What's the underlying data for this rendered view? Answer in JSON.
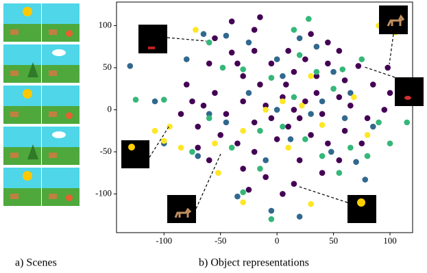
{
  "chart_data": {
    "type": "scatter",
    "xlim": [
      -142,
      120
    ],
    "ylim": [
      -146,
      128
    ],
    "xticks": [
      -100,
      -50,
      0,
      50,
      100
    ],
    "yticks": [
      -100,
      -50,
      0,
      50,
      100
    ],
    "series": [
      {
        "color": "#440154",
        "x": [
          -60,
          -40,
          -35,
          -20,
          -30,
          -15,
          -5,
          10,
          15,
          25,
          35,
          45,
          55,
          60,
          72,
          98,
          -75,
          -65,
          -55,
          -45,
          -30,
          -20,
          -10,
          5,
          15,
          25,
          40,
          55,
          65,
          80,
          95,
          -85,
          -70,
          -50,
          -35,
          -20,
          0,
          10,
          30,
          45,
          60,
          75,
          -60,
          -30,
          -10,
          20,
          40,
          15,
          55,
          -25,
          5,
          -40,
          -15,
          30,
          45,
          -80,
          -70,
          85,
          100,
          -55,
          -20,
          8,
          -5,
          35,
          20
        ],
        "y": [
          55,
          68,
          55,
          70,
          40,
          30,
          55,
          70,
          45,
          60,
          40,
          55,
          70,
          35,
          52,
          50,
          10,
          5,
          20,
          -5,
          10,
          -15,
          5,
          15,
          0,
          10,
          -5,
          15,
          5,
          -10,
          0,
          -5,
          -20,
          -30,
          -40,
          -50,
          -35,
          -20,
          -30,
          -40,
          -25,
          -40,
          -60,
          -70,
          -80,
          -60,
          -75,
          -88,
          -60,
          -95,
          -100,
          105,
          110,
          90,
          80,
          30,
          -45,
          30,
          20,
          85,
          95,
          30,
          -10,
          20,
          -10
        ]
      },
      {
        "color": "#31688e",
        "x": [
          -130,
          -108,
          -65,
          -45,
          -25,
          0,
          20,
          35,
          50,
          65,
          85,
          -100,
          -70,
          -45,
          -25,
          0,
          12,
          30,
          48,
          70,
          78,
          -35,
          -5,
          20,
          -60,
          5,
          40,
          -10,
          60,
          -80
        ],
        "y": [
          52,
          10,
          90,
          88,
          80,
          60,
          85,
          75,
          45,
          20,
          -20,
          -40,
          -55,
          -15,
          20,
          0,
          -35,
          -5,
          -50,
          -62,
          -83,
          -103,
          -120,
          -127,
          -5,
          40,
          10,
          -60,
          -10,
          60
        ]
      },
      {
        "color": "#35b779",
        "x": [
          -60,
          -48,
          -30,
          -5,
          15,
          28,
          20,
          58,
          75,
          90,
          115,
          -125,
          -100,
          -60,
          -40,
          -15,
          5,
          25,
          40,
          55,
          80,
          100,
          -30,
          -5,
          -75,
          15,
          35,
          65,
          -15,
          50
        ],
        "y": [
          80,
          50,
          48,
          38,
          95,
          108,
          65,
          48,
          60,
          -15,
          -15,
          12,
          12,
          -10,
          -45,
          -25,
          -20,
          -35,
          -55,
          -75,
          -55,
          -40,
          -98,
          -130,
          -50,
          15,
          45,
          -45,
          -70,
          25
        ]
      },
      {
        "color": "#fde725",
        "x": [
          -72,
          -95,
          -108,
          -100,
          -55,
          -30,
          -10,
          5,
          22,
          30,
          68,
          80,
          90,
          105,
          -30,
          30,
          -52,
          40,
          -85,
          10
        ],
        "y": [
          95,
          -20,
          -25,
          -37,
          -40,
          -25,
          0,
          10,
          5,
          40,
          15,
          -30,
          100,
          92,
          -110,
          -112,
          -75,
          -18,
          -45,
          -45
        ]
      }
    ]
  },
  "captions": {
    "scenes": "a) Scenes",
    "plot": "b) Object representations"
  }
}
